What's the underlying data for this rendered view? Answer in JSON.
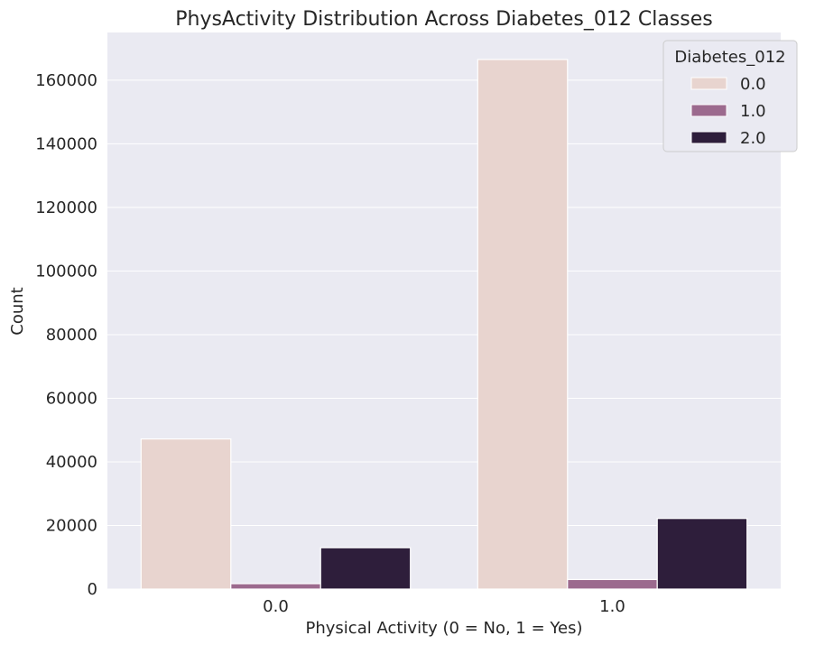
{
  "chart_data": {
    "type": "bar",
    "title": "PhysActivity Distribution Across Diabetes_012 Classes",
    "xlabel": "Physical Activity (0 = No, 1 = Yes)",
    "ylabel": "Count",
    "categories": [
      "0.0",
      "1.0"
    ],
    "series": [
      {
        "name": "0.0",
        "color": "#e8d4cf",
        "values": [
          47200,
          166500
        ]
      },
      {
        "name": "1.0",
        "color": "#9c6a8e",
        "values": [
          1700,
          3000
        ]
      },
      {
        "name": "2.0",
        "color": "#2e1e3b",
        "values": [
          13000,
          22200
        ]
      }
    ],
    "ylim": [
      0,
      175000
    ],
    "yticks": [
      0,
      20000,
      40000,
      60000,
      80000,
      100000,
      120000,
      140000,
      160000
    ],
    "ytick_labels": [
      "0",
      "20000",
      "40000",
      "60000",
      "80000",
      "100000",
      "120000",
      "140000",
      "160000"
    ],
    "legend": {
      "title": "Diabetes_012",
      "placement": "top-right"
    },
    "grid": true,
    "background": "#eaeaf2"
  }
}
